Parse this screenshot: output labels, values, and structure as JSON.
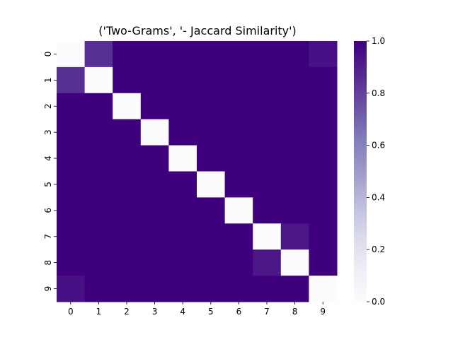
{
  "chart_data": {
    "type": "heatmap",
    "title": "('Two-Grams', '- Jaccard Similarity')",
    "xlabel": "",
    "ylabel": "",
    "x_categories": [
      "0",
      "1",
      "2",
      "3",
      "4",
      "5",
      "6",
      "7",
      "8",
      "9"
    ],
    "y_categories": [
      "0",
      "1",
      "2",
      "3",
      "4",
      "5",
      "6",
      "7",
      "8",
      "9"
    ],
    "values": [
      [
        0.0,
        0.85,
        1.0,
        1.0,
        1.0,
        1.0,
        1.0,
        1.0,
        1.0,
        0.95
      ],
      [
        0.85,
        0.0,
        1.0,
        1.0,
        1.0,
        1.0,
        1.0,
        1.0,
        1.0,
        1.0
      ],
      [
        1.0,
        1.0,
        0.0,
        1.0,
        1.0,
        1.0,
        1.0,
        1.0,
        1.0,
        1.0
      ],
      [
        1.0,
        1.0,
        1.0,
        0.0,
        1.0,
        1.0,
        1.0,
        1.0,
        1.0,
        1.0
      ],
      [
        1.0,
        1.0,
        1.0,
        1.0,
        0.0,
        1.0,
        1.0,
        1.0,
        1.0,
        1.0
      ],
      [
        1.0,
        1.0,
        1.0,
        1.0,
        1.0,
        0.0,
        1.0,
        1.0,
        1.0,
        1.0
      ],
      [
        1.0,
        1.0,
        1.0,
        1.0,
        1.0,
        1.0,
        0.0,
        1.0,
        1.0,
        1.0
      ],
      [
        1.0,
        1.0,
        1.0,
        1.0,
        1.0,
        1.0,
        1.0,
        0.0,
        0.93,
        1.0
      ],
      [
        1.0,
        1.0,
        1.0,
        1.0,
        1.0,
        1.0,
        1.0,
        0.93,
        0.0,
        1.0
      ],
      [
        0.95,
        1.0,
        1.0,
        1.0,
        1.0,
        1.0,
        1.0,
        1.0,
        1.0,
        0.0
      ]
    ],
    "colorbar": {
      "range": [
        0.0,
        1.0
      ],
      "ticks": [
        "0.0",
        "0.2",
        "0.4",
        "0.6",
        "0.8",
        "1.0"
      ],
      "colormap": "Purples",
      "color_low": "#fcfbfd",
      "color_high": "#3f007d"
    },
    "grid": false,
    "legend": "colorbar-right"
  }
}
